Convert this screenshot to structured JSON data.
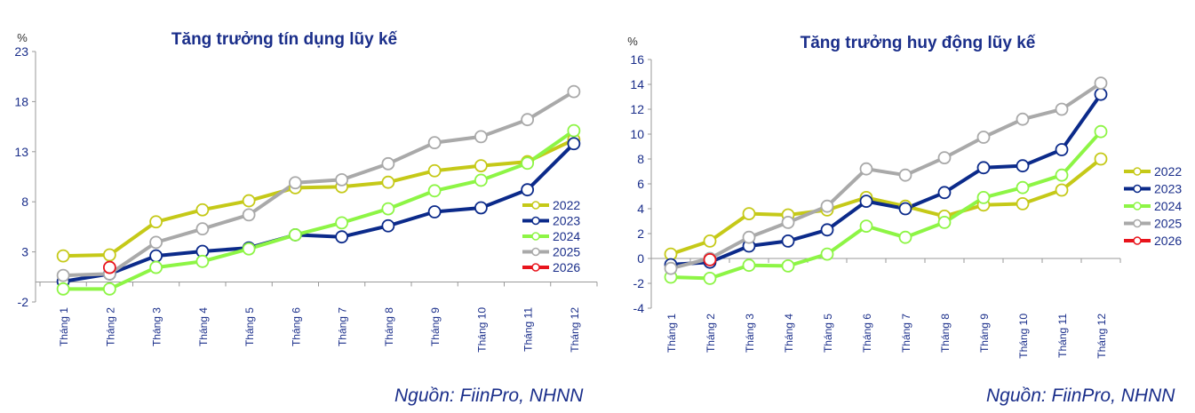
{
  "colors": {
    "2022": "#c5c918",
    "2023": "#0b2a8a",
    "2024": "#8df545",
    "2025": "#a9a9a9",
    "2026": "#e8141c",
    "axis_text": "#1a2e8a",
    "title": "#1a2e8a"
  },
  "chart_data": [
    {
      "type": "line",
      "title": "Tăng trưởng tín dụng lũy kế",
      "ylabel": "%",
      "xlabel": "",
      "ylim": [
        -2,
        23
      ],
      "yticks": [
        "23",
        "18",
        "13",
        "8",
        "3",
        "-2"
      ],
      "ytick_values": [
        23,
        18,
        13,
        8,
        3,
        -2
      ],
      "categories": [
        "Tháng 1",
        "Tháng 2",
        "Tháng 3",
        "Tháng 4",
        "Tháng 5",
        "Tháng 6",
        "Tháng 7",
        "Tháng 8",
        "Tháng 9",
        "Tháng 10",
        "Tháng 11",
        "Tháng 12"
      ],
      "legend_position": "right",
      "series": [
        {
          "name": "2022",
          "values": [
            2.6,
            2.7,
            6.0,
            7.2,
            8.1,
            9.4,
            9.5,
            9.95,
            11.1,
            11.6,
            12.0,
            14.2
          ]
        },
        {
          "name": "2023",
          "values": [
            0.05,
            0.8,
            2.6,
            3.05,
            3.4,
            4.7,
            4.5,
            5.6,
            7.0,
            7.4,
            9.2,
            13.8
          ]
        },
        {
          "name": "2024",
          "values": [
            -0.7,
            -0.7,
            1.45,
            2.05,
            3.3,
            4.7,
            5.9,
            7.3,
            9.1,
            10.15,
            11.85,
            15.1
          ]
        },
        {
          "name": "2025",
          "values": [
            0.65,
            0.8,
            3.95,
            5.3,
            6.7,
            9.9,
            10.2,
            11.8,
            13.9,
            14.5,
            16.2,
            19.0
          ]
        },
        {
          "name": "2026",
          "values": [
            null,
            1.45,
            null,
            null,
            null,
            null,
            null,
            null,
            null,
            null,
            null,
            null
          ]
        }
      ],
      "source": "Nguồn: FiinPro, NHNN"
    },
    {
      "type": "line",
      "title": "Tăng trưởng huy động lũy kế",
      "ylabel": "%",
      "xlabel": "",
      "ylim": [
        -4,
        16
      ],
      "yticks": [
        "16",
        "14",
        "12",
        "10",
        "8",
        "6",
        "4",
        "2",
        "0",
        "-2",
        "-4"
      ],
      "ytick_values": [
        16,
        14,
        12,
        10,
        8,
        6,
        4,
        2,
        0,
        -2,
        -4
      ],
      "categories": [
        "Tháng 1",
        "Tháng 2",
        "Tháng 3",
        "Tháng 4",
        "Tháng 5",
        "Tháng 6",
        "Tháng 7",
        "Tháng 8",
        "Tháng 9",
        "Tháng 10",
        "Tháng 11",
        "Tháng 12"
      ],
      "legend_position": "right",
      "series": [
        {
          "name": "2022",
          "values": [
            0.35,
            1.4,
            3.6,
            3.5,
            3.9,
            4.9,
            4.2,
            3.4,
            4.3,
            4.4,
            5.5,
            8.0
          ]
        },
        {
          "name": "2023",
          "values": [
            -0.5,
            -0.3,
            1.0,
            1.4,
            2.3,
            4.6,
            4.0,
            5.3,
            7.3,
            7.45,
            8.75,
            13.2
          ]
        },
        {
          "name": "2024",
          "values": [
            -1.5,
            -1.6,
            -0.55,
            -0.6,
            0.35,
            2.6,
            1.7,
            2.9,
            4.9,
            5.7,
            6.7,
            10.2
          ]
        },
        {
          "name": "2025",
          "values": [
            -0.8,
            0.0,
            1.7,
            2.9,
            4.2,
            7.2,
            6.7,
            8.1,
            9.75,
            11.2,
            12.0,
            14.1
          ]
        },
        {
          "name": "2026",
          "values": [
            null,
            -0.1,
            null,
            null,
            null,
            null,
            null,
            null,
            null,
            null,
            null,
            null
          ]
        }
      ],
      "source": "Nguồn: FiinPro, NHNN"
    }
  ]
}
